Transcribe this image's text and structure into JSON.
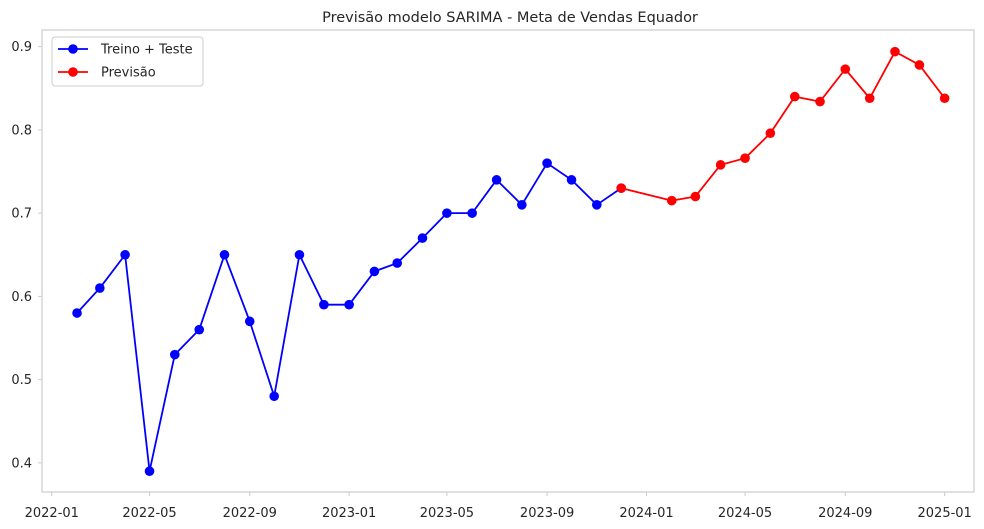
{
  "chart_data": {
    "type": "line",
    "title": "Previsão modelo SARIMA - Meta de Vendas Equador",
    "xlabel": "",
    "ylabel": "",
    "xlim": [
      "2021-12-20",
      "2025-02-06"
    ],
    "ylim": [
      0.365,
      0.92
    ],
    "grid": false,
    "legend_position": "top-left",
    "x_ticks": [
      "2022-01",
      "2022-05",
      "2022-09",
      "2023-01",
      "2023-05",
      "2023-09",
      "2024-01",
      "2024-05",
      "2024-09",
      "2025-01"
    ],
    "y_ticks": [
      0.4,
      0.5,
      0.6,
      0.7,
      0.8,
      0.9
    ],
    "series": [
      {
        "name": "Treino + Teste",
        "color": "#0000ff",
        "x": [
          "2022-02-01",
          "2022-03-01",
          "2022-04-01",
          "2022-05-01",
          "2022-06-01",
          "2022-07-01",
          "2022-08-01",
          "2022-09-01",
          "2022-10-01",
          "2022-11-01",
          "2022-12-01",
          "2023-01-01",
          "2023-02-01",
          "2023-03-01",
          "2023-04-01",
          "2023-05-01",
          "2023-06-01",
          "2023-07-01",
          "2023-08-01",
          "2023-09-01",
          "2023-10-01",
          "2023-11-01",
          "2023-12-01"
        ],
        "values": [
          0.58,
          0.61,
          0.65,
          0.39,
          0.53,
          0.56,
          0.65,
          0.57,
          0.48,
          0.65,
          0.59,
          0.59,
          0.63,
          0.64,
          0.67,
          0.7,
          0.7,
          0.74,
          0.71,
          0.76,
          0.74,
          0.71,
          0.73
        ]
      },
      {
        "name": "Previsão",
        "color": "#ff0000",
        "x": [
          "2023-12-01",
          "2024-02-01",
          "2024-03-01",
          "2024-04-01",
          "2024-05-01",
          "2024-06-01",
          "2024-07-01",
          "2024-08-01",
          "2024-09-01",
          "2024-10-01",
          "2024-11-01",
          "2024-12-01",
          "2025-01-01"
        ],
        "values": [
          0.73,
          0.715,
          0.72,
          0.758,
          0.766,
          0.796,
          0.84,
          0.834,
          0.873,
          0.838,
          0.894,
          0.878,
          0.838
        ]
      }
    ]
  }
}
